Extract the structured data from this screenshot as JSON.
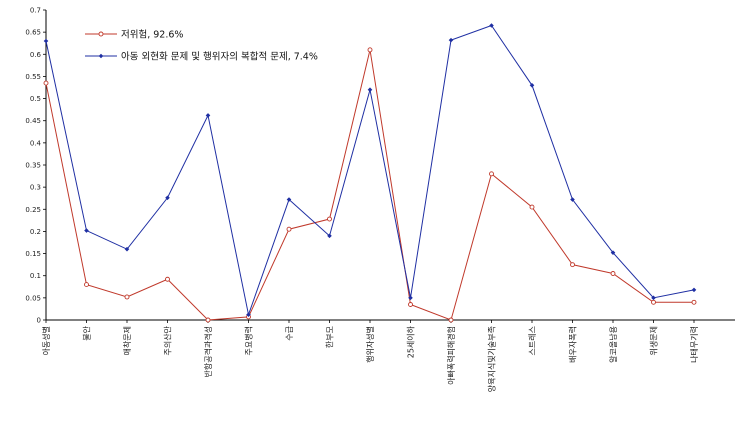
{
  "chart_data": {
    "type": "line",
    "categories": [
      "아동성별",
      "불안",
      "애착문제",
      "주의산만",
      "반항공격과격성",
      "주요병력",
      "수급",
      "한부모",
      "행위자성별",
      "25세이하",
      "아빠폭력피해경험",
      "양육지식및기술부족",
      "스트레스",
      "배우자폭력",
      "알코올남용",
      "위생문제",
      "나태무기력"
    ],
    "series": [
      {
        "name": "저위험, 92.6%",
        "color": "#c0392b",
        "marker": "open-circle",
        "values": [
          0.535,
          0.08,
          0.052,
          0.092,
          0.0,
          0.007,
          0.205,
          0.228,
          0.61,
          0.035,
          0.0,
          0.33,
          0.255,
          0.125,
          0.105,
          0.04,
          0.04
        ]
      },
      {
        "name": "아동 외현화 문제 및 행위자의 복합적 문제, 7.4%",
        "color": "#1f2fa3",
        "marker": "filled-diamond",
        "values": [
          0.63,
          0.202,
          0.16,
          0.276,
          0.462,
          0.012,
          0.272,
          0.19,
          0.52,
          0.05,
          0.632,
          0.665,
          0.53,
          0.272,
          0.152,
          0.05,
          0.068
        ]
      }
    ],
    "yticks": [
      "0",
      "0.05",
      "0.1",
      "0.15",
      "0.2",
      "0.25",
      "0.3",
      "0.35",
      "0.4",
      "0.45",
      "0.5",
      "0.55",
      "0.6",
      "0.65",
      "0.7"
    ],
    "ylim": [
      0,
      0.7
    ],
    "legend_position": "top-left",
    "grid": false
  }
}
